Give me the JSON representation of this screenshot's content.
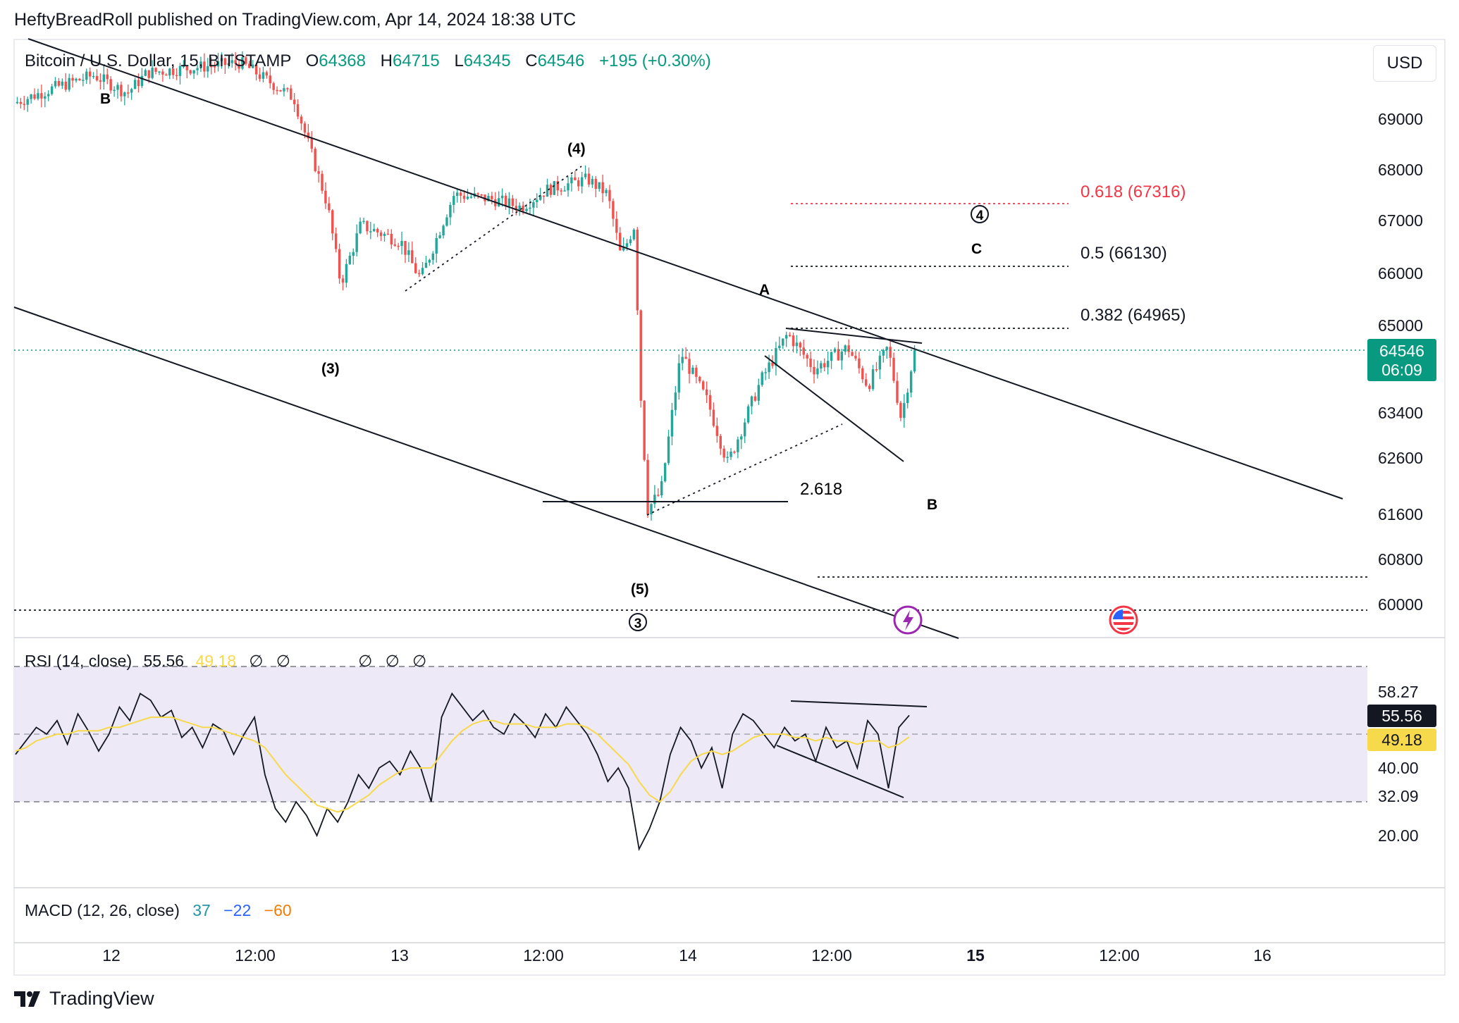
{
  "header": {
    "published": "HeftyBreadRoll published on TradingView.com, Apr 14, 2024 18:38 UTC"
  },
  "symbol": {
    "name": "Bitcoin / U.S. Dollar, 15, BITSTAMP",
    "open_label": "O",
    "open": "64368",
    "high_label": "H",
    "high": "64715",
    "low_label": "L",
    "low": "64345",
    "close_label": "C",
    "close": "64546",
    "change": "+195 (+0.30%)"
  },
  "currency_button": "USD",
  "price_axis": {
    "ticks": [
      "69000",
      "68000",
      "67000",
      "66000",
      "65000",
      "63400",
      "62600",
      "61600",
      "60800",
      "60000"
    ],
    "last_price": "64546",
    "countdown": "06:09"
  },
  "fib_levels": [
    {
      "label": "0.618 (67316)",
      "price": 67316,
      "color": "#f23645"
    },
    {
      "label": "0.5 (66130)",
      "price": 66130,
      "color": "#131722"
    },
    {
      "label": "0.382 (64965)",
      "price": 64965,
      "color": "#131722"
    }
  ],
  "wave_labels": {
    "b_left": "B",
    "w4": "(4)",
    "w3": "(3)",
    "w5": "(5)",
    "circle3": "3",
    "circle4": "4",
    "c": "C",
    "a": "A",
    "b_right": "B",
    "ext": "2.618"
  },
  "rsi": {
    "title": "RSI (14, close)",
    "value": "55.56",
    "ma_value": "49.18",
    "na_marks": [
      "∅",
      "∅",
      "∅",
      "∅",
      "∅"
    ],
    "ticks": [
      "58.27",
      "40.00",
      "32.09",
      "20.00"
    ],
    "upper_band": 70,
    "lower_band": 30
  },
  "macd": {
    "title": "MACD (12, 26, close)",
    "macd": "37",
    "signal": "−22",
    "hist": "−60"
  },
  "time_axis": {
    "ticks": [
      "12",
      "12:00",
      "13",
      "12:00",
      "14",
      "12:00",
      "15",
      "12:00",
      "16"
    ]
  },
  "footer": {
    "brand": "TradingView"
  },
  "colors": {
    "up": "#26a69a",
    "down": "#ef5350",
    "fib_red": "#f23645",
    "rsi_line": "#131722",
    "rsi_ma": "#f7d94c",
    "rsi_bg": "#ede9f7",
    "price_label": "#089981",
    "macd": "#2196a6",
    "signal": "#2962ff",
    "hist": "#f57c00"
  },
  "chart_data": {
    "type": "candlestick",
    "title": "Bitcoin / U.S. Dollar, 15, BITSTAMP",
    "interval": "15",
    "ylim": [
      59600,
      70000
    ],
    "price_path_anchors": [
      {
        "t": 0.0,
        "p": 69300
      },
      {
        "t": 0.03,
        "p": 69600
      },
      {
        "t": 0.06,
        "p": 69850
      },
      {
        "t": 0.085,
        "p": 69500
      },
      {
        "t": 0.1,
        "p": 69900
      },
      {
        "t": 0.17,
        "p": 70100
      },
      {
        "t": 0.21,
        "p": 69400
      },
      {
        "t": 0.235,
        "p": 67300
      },
      {
        "t": 0.245,
        "p": 65800
      },
      {
        "t": 0.26,
        "p": 66900
      },
      {
        "t": 0.29,
        "p": 66600
      },
      {
        "t": 0.3,
        "p": 66100
      },
      {
        "t": 0.305,
        "p": 65900
      },
      {
        "t": 0.33,
        "p": 67500
      },
      {
        "t": 0.36,
        "p": 67400
      },
      {
        "t": 0.38,
        "p": 67250
      },
      {
        "t": 0.4,
        "p": 67600
      },
      {
        "t": 0.43,
        "p": 67800
      },
      {
        "t": 0.445,
        "p": 67500
      },
      {
        "t": 0.455,
        "p": 66300
      },
      {
        "t": 0.465,
        "p": 66900
      },
      {
        "t": 0.47,
        "p": 63600
      },
      {
        "t": 0.475,
        "p": 61700
      },
      {
        "t": 0.485,
        "p": 62000
      },
      {
        "t": 0.5,
        "p": 64500
      },
      {
        "t": 0.52,
        "p": 63600
      },
      {
        "t": 0.535,
        "p": 62500
      },
      {
        "t": 0.56,
        "p": 64000
      },
      {
        "t": 0.58,
        "p": 64850
      },
      {
        "t": 0.6,
        "p": 64200
      },
      {
        "t": 0.625,
        "p": 64600
      },
      {
        "t": 0.64,
        "p": 63900
      },
      {
        "t": 0.655,
        "p": 64600
      },
      {
        "t": 0.665,
        "p": 63300
      },
      {
        "t": 0.675,
        "p": 64546
      }
    ],
    "rsi_series": {
      "ylim": [
        10,
        70
      ],
      "values": [
        44,
        48,
        52,
        50,
        54,
        47,
        56,
        51,
        45,
        50,
        58,
        54,
        62,
        60,
        55,
        57,
        49,
        52,
        46,
        53,
        51,
        44,
        50,
        55,
        38,
        28,
        24,
        30,
        26,
        20,
        28,
        24,
        30,
        38,
        34,
        40,
        42,
        38,
        45,
        40,
        30,
        55,
        62,
        58,
        54,
        57,
        52,
        50,
        56,
        53,
        49,
        56,
        52,
        58,
        54,
        50,
        44,
        36,
        40,
        34,
        16,
        22,
        30,
        44,
        52,
        48,
        40,
        46,
        34,
        50,
        56,
        54,
        50,
        46,
        52,
        48,
        50,
        42,
        52,
        46,
        48,
        40,
        54,
        50,
        34,
        52,
        55.56
      ],
      "ma_values": [
        45,
        46,
        48,
        49,
        50,
        50,
        51,
        51,
        51,
        52,
        52,
        53,
        54,
        55,
        55,
        55,
        54,
        53,
        52,
        52,
        51,
        50,
        49,
        48,
        46,
        42,
        38,
        35,
        32,
        29,
        28,
        27,
        28,
        30,
        32,
        35,
        37,
        39,
        40,
        40,
        40,
        44,
        48,
        51,
        53,
        54,
        54,
        53,
        53,
        53,
        52,
        52,
        52,
        53,
        53,
        52,
        50,
        47,
        44,
        41,
        36,
        32,
        30,
        33,
        38,
        42,
        44,
        45,
        44,
        45,
        47,
        49,
        50,
        50,
        50,
        49,
        49,
        48,
        49,
        48,
        48,
        47,
        48,
        48,
        46,
        47,
        49.18
      ]
    },
    "macd_series": {
      "macd": 37,
      "signal": -22,
      "histogram": -60
    }
  }
}
